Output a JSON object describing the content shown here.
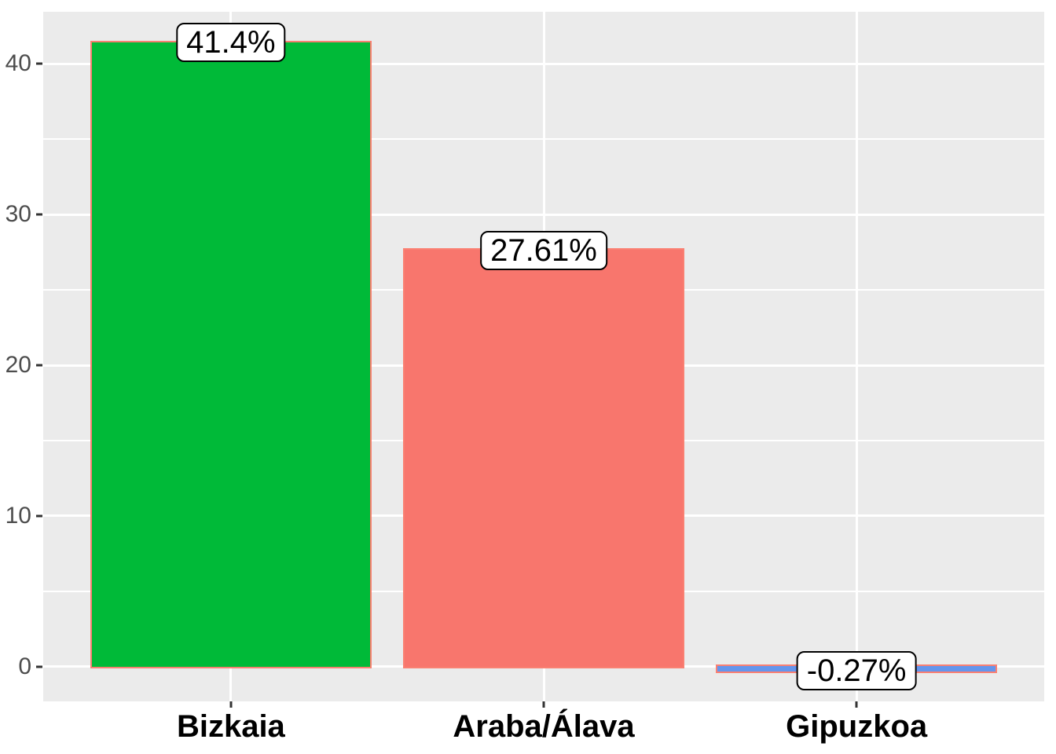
{
  "chart_data": {
    "type": "bar",
    "title": "",
    "xlabel": "",
    "ylabel": "",
    "categories": [
      "Bizkaia",
      "Araba/Álava",
      "Gipuzkoa"
    ],
    "values": [
      41.4,
      27.61,
      -0.27
    ],
    "bar_labels": [
      "41.4%",
      "27.61%",
      "-0.27%"
    ],
    "bar_fill_colors": [
      "#00BA38",
      "#F8766D",
      "#6495ED"
    ],
    "bar_outline_color": "#FA8072",
    "ylim": [
      -2.3,
      43.45
    ],
    "yticks": [
      0,
      10,
      20,
      30,
      40
    ],
    "ytick_labels": [
      "0",
      "10",
      "20",
      "30",
      "40"
    ],
    "minor_yticks": [
      5,
      15,
      25,
      35
    ],
    "grid": "major+minor",
    "legend_position": "none",
    "theme": {
      "panel_background": "#EBEBEB",
      "grid_major_color": "#FFFFFF",
      "grid_minor_color": "#FFFFFF",
      "tick_mark_color": "#333333",
      "ytick_text_color": "#4D4D4D",
      "xtick_text_color": "#000000",
      "label_box_background": "#FFFFFF",
      "label_box_border": "#000000",
      "figure_background": "#FFFFFF"
    }
  }
}
